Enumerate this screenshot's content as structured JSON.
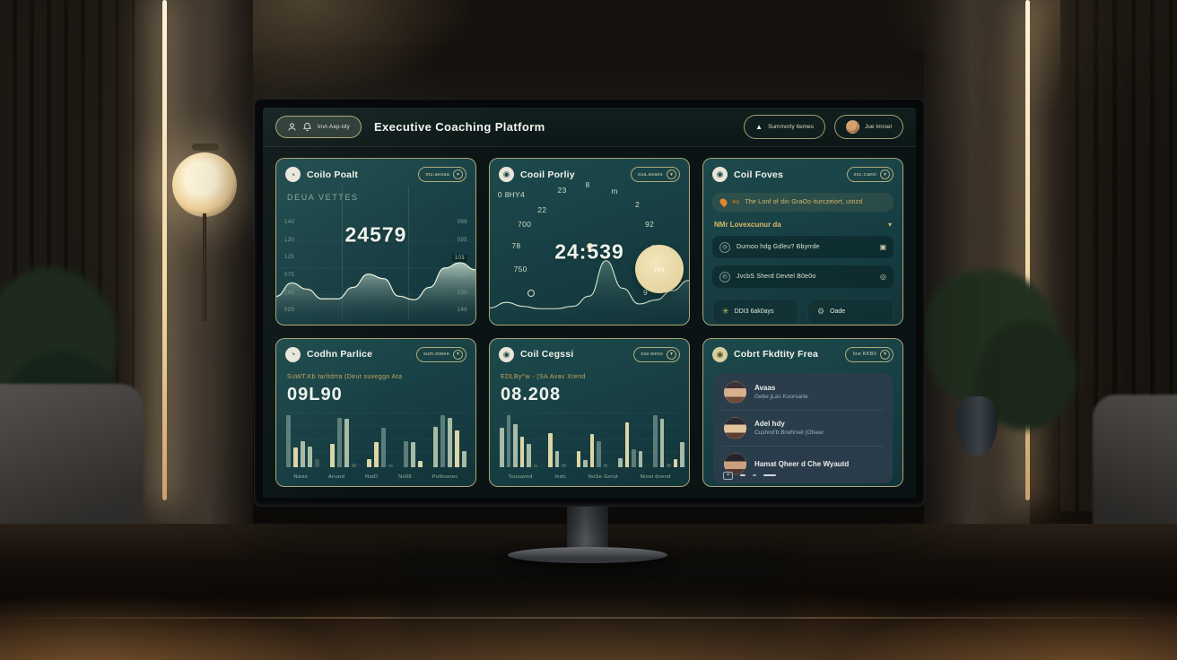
{
  "header": {
    "badge": {
      "text": "Invt-Aep-tdy"
    },
    "title": "Executive Coaching Platform",
    "actions": [
      {
        "label": "Summorty Itemes"
      },
      {
        "label": "Jue Imrsel"
      }
    ]
  },
  "cards": {
    "c1": {
      "title": "Coilo Poalt",
      "filter": "mu.aesaa",
      "subtitle": "DEUA VETTES",
      "value": "24579",
      "chart_data": {
        "type": "area",
        "values": [
          0.3,
          0.45,
          0.38,
          0.27,
          0.27,
          0.4,
          0.55,
          0.5,
          0.3,
          0.26,
          0.4,
          0.62,
          0.68,
          0.6
        ],
        "left_ticks": [
          "140",
          "130",
          "125",
          "075",
          "100",
          "025"
        ],
        "right_ticks": [
          {
            "t": "098"
          },
          {
            "t": "095"
          },
          {
            "t": "103",
            "hl": true
          },
          {
            "t": "085"
          },
          {
            "t": "100"
          },
          {
            "t": "148"
          }
        ],
        "grid": "on"
      }
    },
    "c2": {
      "title": "Cooil Porliy",
      "filter": "sua.aeaes",
      "value": "24:539",
      "bubble_label": "nm",
      "chart_data": {
        "type": "line",
        "values": [
          0.2,
          0.27,
          0.22,
          0.19,
          0.19,
          0.22,
          0.35,
          0.8,
          0.45,
          0.25,
          0.3,
          0.42,
          0.55
        ],
        "annotations": [
          {
            "t": "0 8HY4",
            "x": 4,
            "y": 19
          },
          {
            "t": "22",
            "x": 24,
            "y": 28
          },
          {
            "t": "23",
            "x": 34,
            "y": 16
          },
          {
            "t": "8",
            "x": 48,
            "y": 13
          },
          {
            "t": "m",
            "x": 61,
            "y": 17
          },
          {
            "t": "2",
            "x": 73,
            "y": 25
          },
          {
            "t": "700",
            "x": 14,
            "y": 37
          },
          {
            "t": "92",
            "x": 78,
            "y": 37
          },
          {
            "t": "78",
            "x": 11,
            "y": 50
          },
          {
            "t": "23",
            "x": 81,
            "y": 51
          },
          {
            "t": "750",
            "x": 12,
            "y": 64
          },
          {
            "t": "9",
            "x": 77,
            "y": 78
          }
        ]
      }
    },
    "c3": {
      "title": "Coil Foves",
      "filter": "ssc.caesi",
      "banner": {
        "tag": "4rs",
        "text": "The Lonf of din GraOo iturczeiort, utozd"
      },
      "dropdown": "NMr Lovexcunur da",
      "rows": [
        {
          "label": "Durnoo hdg Gdleu? Bbyrrde"
        },
        {
          "label": "JvcbS Sherd Devtel B0e0o"
        }
      ],
      "buttons": [
        {
          "label": "DDI3 6ak0ays"
        },
        {
          "label": "Oade"
        }
      ]
    },
    "c4": {
      "title": "Codhn Parlice",
      "filter": "sum.stwee",
      "subtitle": "SuWT.Kb tarltdrta (Deut suveggo Ata",
      "value": "09L90",
      "chart_data": {
        "type": "bar",
        "x_labels": [
          "Nwas",
          "Anund",
          "NatD",
          "Ns08",
          "PuNssnec"
        ],
        "bars": [
          {
            "h": 0.95,
            "c": "teal"
          },
          {
            "h": 0.36,
            "c": "cream"
          },
          {
            "h": 0.48,
            "c": "sage"
          },
          {
            "h": 0.38,
            "c": "sage"
          },
          {
            "h": 0.15,
            "c": "dark"
          },
          {
            "h": 0.42,
            "c": "cream",
            "g": 1
          },
          {
            "h": 0.9,
            "c": "teal"
          },
          {
            "h": 0.88,
            "c": "sage"
          },
          {
            "h": 0.07,
            "c": "dark"
          },
          {
            "h": 0.15,
            "c": "cream",
            "g": 1
          },
          {
            "h": 0.45,
            "c": "cream"
          },
          {
            "h": 0.72,
            "c": "teal"
          },
          {
            "h": 0.05,
            "c": "dark"
          },
          {
            "h": 0.48,
            "c": "teal",
            "g": 1
          },
          {
            "h": 0.45,
            "c": "sage"
          },
          {
            "h": 0.12,
            "c": "cream"
          },
          {
            "h": 0.74,
            "c": "sage",
            "g": 1
          },
          {
            "h": 0.95,
            "c": "teal"
          },
          {
            "h": 0.9,
            "c": "sage"
          },
          {
            "h": 0.67,
            "c": "cream"
          },
          {
            "h": 0.3,
            "c": "sage"
          }
        ]
      }
    },
    "c5": {
      "title": "Coil Cegssi",
      "filter": "suv.wess",
      "subtitle": "EDLBy^w - (SA Avav Xrend",
      "value": "08.208",
      "chart_data": {
        "type": "bar",
        "x_labels": [
          "Tousavnd",
          "Indo",
          "NoSe Gvrut",
          "Niost dvend"
        ],
        "bars": [
          {
            "h": 0.72,
            "c": "sage"
          },
          {
            "h": 0.95,
            "c": "teal"
          },
          {
            "h": 0.78,
            "c": "sage"
          },
          {
            "h": 0.55,
            "c": "cream"
          },
          {
            "h": 0.42,
            "c": "sage"
          },
          {
            "h": 0.05,
            "c": "dark"
          },
          {
            "h": 0.62,
            "c": "cream",
            "g": 1
          },
          {
            "h": 0.3,
            "c": "sage"
          },
          {
            "h": 0.06,
            "c": "dark"
          },
          {
            "h": 0.3,
            "c": "cream",
            "g": 1
          },
          {
            "h": 0.13,
            "c": "sage"
          },
          {
            "h": 0.6,
            "c": "cream"
          },
          {
            "h": 0.48,
            "c": "teal"
          },
          {
            "h": 0.06,
            "c": "dark"
          },
          {
            "h": 0.16,
            "c": "sage",
            "g": 1
          },
          {
            "h": 0.82,
            "c": "cream"
          },
          {
            "h": 0.33,
            "c": "teal"
          },
          {
            "h": 0.3,
            "c": "sage"
          },
          {
            "h": 0.95,
            "c": "teal",
            "g": 1
          },
          {
            "h": 0.88,
            "c": "sage"
          },
          {
            "h": 0.06,
            "c": "dark"
          },
          {
            "h": 0.14,
            "c": "cream"
          },
          {
            "h": 0.45,
            "c": "sage"
          }
        ]
      }
    },
    "c6": {
      "title": "Cobrt Fkdtity Frea",
      "filter": "Iow KKB0",
      "members": [
        {
          "name": "Avaas",
          "sub": "Gebe jLas Koorsarte"
        },
        {
          "name": "Adel hdy",
          "sub": "Cushnd'b Brwhrvet (Olsew"
        },
        {
          "name": "Hamat Qheer d Che Wyautd",
          "sub": ""
        }
      ]
    }
  },
  "colors": {
    "accent_gold": "#d9b96a",
    "card_border": "#d1be82",
    "card_bg": "#1d4a4c",
    "cream_bar": "#dcd5a6",
    "sage_bar": "#a7bba6",
    "bubble": "#e8d9a6"
  }
}
